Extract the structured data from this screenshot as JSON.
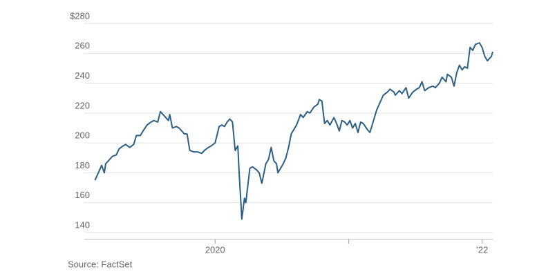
{
  "chart_data": {
    "type": "line",
    "source": "Source: FactSet",
    "x": [
      2019.1,
      2019.13,
      2019.15,
      2019.17,
      2019.18,
      2019.2,
      2019.23,
      2019.26,
      2019.28,
      2019.31,
      2019.33,
      2019.36,
      2019.39,
      2019.41,
      2019.44,
      2019.46,
      2019.49,
      2019.52,
      2019.54,
      2019.57,
      2019.59,
      2019.62,
      2019.65,
      2019.66,
      2019.68,
      2019.71,
      2019.73,
      2019.77,
      2019.79,
      2019.81,
      2019.84,
      2019.87,
      2019.9,
      2019.92,
      2019.95,
      2019.97,
      2020.0,
      2020.03,
      2020.05,
      2020.07,
      2020.09,
      2020.11,
      2020.13,
      2020.15,
      2020.17,
      2020.18,
      2020.2,
      2020.22,
      2020.23,
      2020.26,
      2020.28,
      2020.31,
      2020.33,
      2020.35,
      2020.38,
      2020.4,
      2020.42,
      2020.44,
      2020.46,
      2020.47,
      2020.51,
      2020.53,
      2020.55,
      2020.57,
      2020.61,
      2020.64,
      2020.66,
      2020.69,
      2020.71,
      2020.74,
      2020.77,
      2020.78,
      2020.8,
      2020.82,
      2020.84,
      2020.86,
      2020.89,
      2020.91,
      2020.93,
      2020.95,
      2020.97,
      2020.99,
      2021.01,
      2021.03,
      2021.05,
      2021.07,
      2021.09,
      2021.11,
      2021.14,
      2021.16,
      2021.18,
      2021.21,
      2021.23,
      2021.26,
      2021.29,
      2021.31,
      2021.34,
      2021.35,
      2021.38,
      2021.4,
      2021.43,
      2021.45,
      2021.48,
      2021.51,
      2021.53,
      2021.55,
      2021.57,
      2021.6,
      2021.63,
      2021.65,
      2021.68,
      2021.7,
      2021.73,
      2021.74,
      2021.77,
      2021.79,
      2021.81,
      2021.83,
      2021.85,
      2021.87,
      2021.89,
      2021.91,
      2021.93,
      2021.95,
      2021.98,
      2022.0,
      2022.02,
      2022.04,
      2022.07,
      2022.08
    ],
    "series": [
      {
        "color": "#2b5f86",
        "values": [
          175,
          181,
          185,
          180,
          186,
          188,
          191,
          192,
          196,
          198,
          199,
          197,
          199,
          205,
          205,
          208,
          212,
          214,
          215,
          214,
          221,
          218,
          215,
          219,
          210,
          211,
          210,
          206,
          206,
          195,
          194,
          194,
          193,
          195,
          197,
          198,
          200,
          211,
          212,
          211,
          214,
          216,
          214,
          195,
          198,
          180,
          149,
          163,
          160,
          183,
          184,
          182,
          180,
          173,
          186,
          189,
          197,
          188,
          186,
          180,
          186,
          190,
          197,
          206,
          212,
          219,
          217,
          221,
          220,
          224,
          226,
          229,
          228,
          213,
          215,
          212,
          217,
          213,
          208,
          215,
          214,
          212,
          215,
          210,
          213,
          207,
          214,
          213,
          209,
          207,
          213,
          222,
          226,
          232,
          234,
          236,
          234,
          232,
          235,
          233,
          237,
          230,
          234,
          236,
          237,
          241,
          235,
          237,
          238,
          237,
          240,
          244,
          241,
          246,
          244,
          238,
          247,
          252,
          249,
          251,
          250,
          264,
          262,
          266,
          267,
          264,
          258,
          255,
          258,
          261
        ]
      }
    ],
    "xlim": [
      2019.02,
      2022.08
    ],
    "xticks": [
      2020,
      {
        "value": 2021,
        "label": null
      },
      {
        "value": 2022,
        "label": "’22"
      }
    ],
    "ylim": [
      140,
      280
    ],
    "yticks": [
      {
        "value": 280,
        "label": "$280"
      },
      260,
      240,
      220,
      200,
      180,
      160,
      140
    ],
    "grid": true
  }
}
